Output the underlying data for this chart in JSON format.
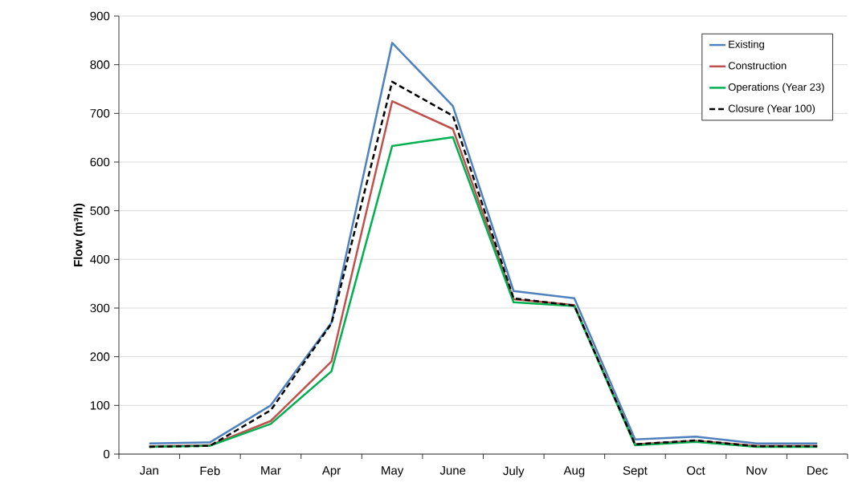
{
  "chart_data": {
    "type": "line",
    "ylabel": "Flow (m³/h)",
    "categories": [
      "Jan",
      "Feb",
      "Mar",
      "Apr",
      "May",
      "June",
      "July",
      "Aug",
      "Sept",
      "Oct",
      "Nov",
      "Dec"
    ],
    "series": [
      {
        "name": "Existing",
        "color": "#4f81bd",
        "values": [
          22,
          24,
          100,
          270,
          845,
          715,
          335,
          320,
          30,
          36,
          22,
          22
        ]
      },
      {
        "name": "Construction",
        "color": "#c0504d",
        "values": [
          16,
          18,
          68,
          190,
          725,
          668,
          318,
          306,
          20,
          27,
          17,
          17
        ]
      },
      {
        "name": "Operations (Year 23)",
        "color": "#00b050",
        "values": [
          15,
          17,
          62,
          170,
          633,
          651,
          312,
          304,
          18,
          25,
          15,
          15
        ]
      },
      {
        "name": "Closure (Year 100)",
        "color": "#000000",
        "line_style": "dashed",
        "values": [
          15,
          17,
          90,
          268,
          765,
          695,
          320,
          305,
          20,
          28,
          16,
          16
        ]
      }
    ],
    "ylim": [
      0,
      900
    ],
    "yticks": [
      0,
      100,
      200,
      300,
      400,
      500,
      600,
      700,
      800,
      900
    ],
    "grid": "y",
    "legend": "top right"
  }
}
